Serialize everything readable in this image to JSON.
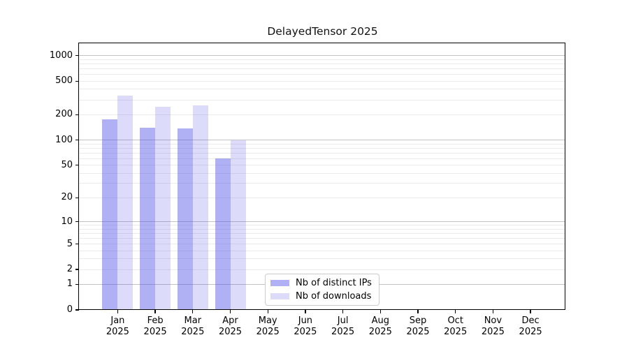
{
  "title": "DelayedTensor 2025",
  "chart_data": {
    "type": "bar",
    "title": "DelayedTensor 2025",
    "categories": [
      "Jan 2025",
      "Feb 2025",
      "Mar 2025",
      "Apr 2025",
      "May 2025",
      "Jun 2025",
      "Jul 2025",
      "Aug 2025",
      "Sep 2025",
      "Oct 2025",
      "Nov 2025",
      "Dec 2025"
    ],
    "series": [
      {
        "name": "Nb of distinct IPs",
        "color": "rgba(80,80,230,0.45)",
        "values": [
          175,
          140,
          138,
          60,
          null,
          null,
          null,
          null,
          null,
          null,
          null,
          null
        ]
      },
      {
        "name": "Nb of downloads",
        "color": "rgba(80,80,230,0.20)",
        "values": [
          335,
          250,
          260,
          100,
          null,
          null,
          null,
          null,
          null,
          null,
          null,
          null
        ]
      }
    ],
    "xlabel": "",
    "ylabel": "",
    "yscale": "log1p",
    "yticks": [
      0,
      1,
      2,
      5,
      10,
      20,
      50,
      100,
      200,
      500,
      1000
    ],
    "ylim": [
      0,
      1400
    ],
    "grid": "horizontal",
    "legend_position": "bottom-center-inside",
    "colors": {
      "major_grid": "#c2c2c2",
      "minor_grid": "#ebebeb",
      "axis": "#000000",
      "background": "#ffffff"
    }
  },
  "legend": {
    "item1": "Nb of distinct IPs",
    "item2": "Nb of downloads"
  }
}
